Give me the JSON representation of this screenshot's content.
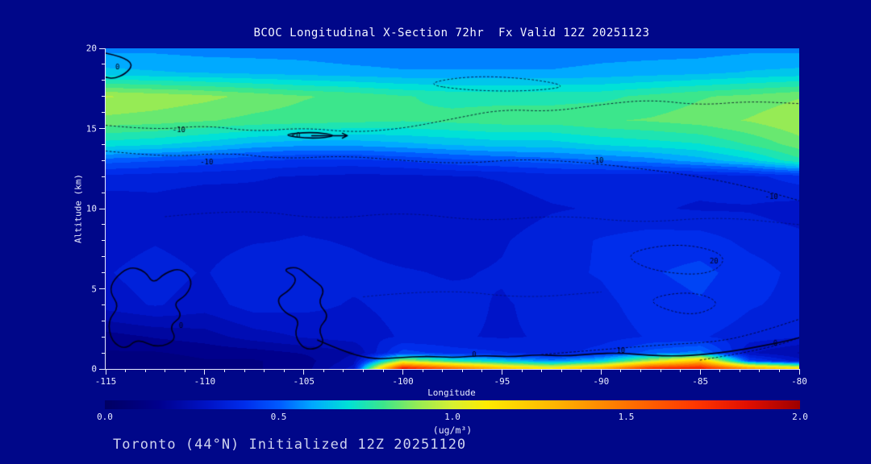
{
  "title": "BCOC Longitudinal X-Section 72hr  Fx Valid 12Z 20251123",
  "footer": "Toronto (44°N) Initialized 12Z 20251120",
  "page_bg": "#000789",
  "chart_data": {
    "type": "heatmap",
    "title": "BCOC Longitudinal X-Section 72hr  Fx Valid 12Z 20251123",
    "xlabel": "Longitude",
    "ylabel": "Altitude (km)",
    "xlim": [
      -115,
      -80
    ],
    "ylim": [
      0,
      20
    ],
    "x_ticks": [
      -115,
      -110,
      -105,
      -100,
      -95,
      -90,
      -85,
      -80
    ],
    "y_ticks": [
      0,
      5,
      10,
      15,
      20
    ],
    "x_minor_step": 1,
    "y_minor_step": 1,
    "grid": "off",
    "value_quantize_step": 0.05,
    "lons": [
      -115,
      -112.5,
      -110,
      -107.5,
      -105,
      -102.5,
      -100,
      -97.5,
      -95,
      -92.5,
      -90,
      -87.5,
      -85,
      -82.5,
      -80
    ],
    "alts": [
      0,
      0.5,
      1,
      2,
      4,
      6,
      8,
      10,
      12,
      13,
      14,
      15.5,
      17,
      18.5,
      20
    ],
    "values": [
      [
        0.1,
        0.1,
        0.12,
        0.12,
        0.15,
        0.3,
        1.9,
        1.6,
        1.3,
        1.15,
        1.35,
        1.8,
        1.85,
        1.45,
        1.2
      ],
      [
        0.1,
        0.1,
        0.12,
        0.12,
        0.15,
        0.25,
        0.95,
        0.75,
        0.65,
        0.55,
        0.65,
        0.95,
        1.25,
        0.45,
        0.3
      ],
      [
        0.12,
        0.12,
        0.14,
        0.15,
        0.18,
        0.22,
        0.45,
        0.4,
        0.38,
        0.35,
        0.4,
        0.5,
        0.55,
        0.28,
        0.22
      ],
      [
        0.15,
        0.18,
        0.2,
        0.25,
        0.28,
        0.3,
        0.33,
        0.33,
        0.32,
        0.33,
        0.35,
        0.38,
        0.38,
        0.35,
        0.33
      ],
      [
        0.3,
        0.33,
        0.3,
        0.35,
        0.34,
        0.32,
        0.34,
        0.34,
        0.32,
        0.34,
        0.36,
        0.4,
        0.42,
        0.38,
        0.36
      ],
      [
        0.32,
        0.35,
        0.32,
        0.37,
        0.35,
        0.34,
        0.33,
        0.32,
        0.33,
        0.36,
        0.38,
        0.42,
        0.44,
        0.4,
        0.36
      ],
      [
        0.3,
        0.32,
        0.3,
        0.32,
        0.33,
        0.32,
        0.3,
        0.3,
        0.32,
        0.35,
        0.38,
        0.4,
        0.4,
        0.36,
        0.34
      ],
      [
        0.28,
        0.3,
        0.28,
        0.3,
        0.3,
        0.28,
        0.28,
        0.28,
        0.3,
        0.32,
        0.33,
        0.33,
        0.32,
        0.32,
        0.3
      ],
      [
        0.36,
        0.35,
        0.34,
        0.33,
        0.32,
        0.31,
        0.31,
        0.32,
        0.33,
        0.35,
        0.35,
        0.34,
        0.34,
        0.36,
        0.4
      ],
      [
        0.5,
        0.48,
        0.46,
        0.43,
        0.41,
        0.41,
        0.43,
        0.46,
        0.48,
        0.5,
        0.52,
        0.55,
        0.6,
        0.66,
        0.76
      ],
      [
        0.7,
        0.68,
        0.65,
        0.61,
        0.59,
        0.59,
        0.61,
        0.63,
        0.65,
        0.65,
        0.68,
        0.7,
        0.72,
        0.78,
        0.85
      ],
      [
        0.86,
        0.85,
        0.83,
        0.81,
        0.8,
        0.79,
        0.78,
        0.79,
        0.8,
        0.8,
        0.82,
        0.83,
        0.85,
        0.88,
        0.92
      ],
      [
        0.93,
        0.91,
        0.89,
        0.86,
        0.83,
        0.81,
        0.78,
        0.76,
        0.76,
        0.76,
        0.76,
        0.79,
        0.82,
        0.84,
        0.87
      ],
      [
        0.64,
        0.63,
        0.62,
        0.61,
        0.6,
        0.59,
        0.58,
        0.58,
        0.58,
        0.58,
        0.59,
        0.6,
        0.61,
        0.63,
        0.64
      ],
      [
        0.56,
        0.56,
        0.55,
        0.55,
        0.55,
        0.54,
        0.54,
        0.54,
        0.54,
        0.54,
        0.55,
        0.55,
        0.55,
        0.56,
        0.56
      ]
    ],
    "colormap": {
      "stops": [
        [
          0.0,
          [
            0,
            0,
            100
          ]
        ],
        [
          0.15,
          [
            0,
            0,
            140
          ]
        ],
        [
          0.3,
          [
            0,
            20,
            200
          ]
        ],
        [
          0.4,
          [
            0,
            45,
            235
          ]
        ],
        [
          0.5,
          [
            0,
            90,
            255
          ]
        ],
        [
          0.6,
          [
            0,
            170,
            255
          ]
        ],
        [
          0.7,
          [
            0,
            225,
            215
          ]
        ],
        [
          0.8,
          [
            60,
            230,
            140
          ]
        ],
        [
          0.9,
          [
            150,
            235,
            85
          ]
        ],
        [
          1.0,
          [
            215,
            240,
            50
          ]
        ],
        [
          1.1,
          [
            255,
            235,
            0
          ]
        ],
        [
          1.3,
          [
            255,
            180,
            0
          ]
        ],
        [
          1.5,
          [
            255,
            115,
            0
          ]
        ],
        [
          1.7,
          [
            255,
            55,
            0
          ]
        ],
        [
          1.85,
          [
            225,
            15,
            0
          ]
        ],
        [
          2.0,
          [
            158,
            0,
            0
          ]
        ]
      ]
    },
    "colorbar": {
      "min": 0,
      "max": 2,
      "ticks": [
        "0.0",
        "0.5",
        "1.0",
        "1.5",
        "2.0"
      ],
      "units": "(ug/m³)"
    },
    "overlay_contours": [
      {
        "name": "zero-topleft",
        "style": "solid",
        "closed": false,
        "points": [
          [
            -115,
            19.7
          ],
          [
            -114.2,
            19.5
          ],
          [
            -113.6,
            19.0
          ],
          [
            -114.0,
            18.4
          ],
          [
            -114.6,
            18.1
          ],
          [
            -115,
            18.2
          ]
        ]
      },
      {
        "name": "zero-blob-left",
        "style": "solid",
        "closed": true,
        "points": [
          [
            -114.6,
            5.6
          ],
          [
            -113.8,
            6.4
          ],
          [
            -113.0,
            6.1
          ],
          [
            -112.6,
            5.3
          ],
          [
            -112.0,
            6.0
          ],
          [
            -111.2,
            6.3
          ],
          [
            -110.6,
            5.5
          ],
          [
            -110.9,
            4.6
          ],
          [
            -111.6,
            4.1
          ],
          [
            -111.1,
            3.3
          ],
          [
            -111.8,
            2.7
          ],
          [
            -111.4,
            1.8
          ],
          [
            -112.4,
            1.3
          ],
          [
            -113.4,
            1.9
          ],
          [
            -114.0,
            1.2
          ],
          [
            -114.7,
            1.7
          ],
          [
            -114.9,
            3.0
          ],
          [
            -114.3,
            3.9
          ],
          [
            -114.8,
            4.8
          ]
        ]
      },
      {
        "name": "zero-blob-mid",
        "style": "solid",
        "closed": true,
        "points": [
          [
            -106.1,
            6.2
          ],
          [
            -105.3,
            5.7
          ],
          [
            -105.7,
            4.9
          ],
          [
            -106.4,
            4.4
          ],
          [
            -106.0,
            3.5
          ],
          [
            -105.2,
            3.1
          ],
          [
            -105.5,
            2.1
          ],
          [
            -104.9,
            1.1
          ],
          [
            -103.9,
            1.5
          ],
          [
            -104.3,
            2.5
          ],
          [
            -103.7,
            3.3
          ],
          [
            -104.3,
            4.1
          ],
          [
            -103.9,
            5.0
          ],
          [
            -104.7,
            5.7
          ],
          [
            -105.3,
            6.4
          ]
        ]
      },
      {
        "name": "zero-plume-top",
        "style": "solid",
        "closed": false,
        "points": [
          [
            -104.3,
            1.8
          ],
          [
            -103.0,
            1.1
          ],
          [
            -101.6,
            0.6
          ],
          [
            -100.2,
            0.7
          ],
          [
            -98.8,
            0.8
          ],
          [
            -97.4,
            0.7
          ],
          [
            -96.0,
            0.85
          ],
          [
            -94.6,
            0.75
          ],
          [
            -93.2,
            0.9
          ],
          [
            -91.8,
            0.8
          ],
          [
            -90.4,
            0.95
          ],
          [
            -89.0,
            1.0
          ],
          [
            -87.6,
            0.85
          ],
          [
            -86.2,
            0.8
          ],
          [
            -84.8,
            0.9
          ],
          [
            -83.4,
            1.1
          ],
          [
            -82.0,
            1.4
          ],
          [
            -80.8,
            1.7
          ],
          [
            -80,
            1.95
          ]
        ]
      },
      {
        "name": "lt0-loop",
        "style": "solid",
        "closed": true,
        "points": [
          [
            -106.2,
            14.6
          ],
          [
            -104.6,
            14.8
          ],
          [
            -103.2,
            14.55
          ],
          [
            -104.6,
            14.35
          ]
        ]
      },
      {
        "name": "arrow-indicator",
        "style": "arrow",
        "closed": false,
        "points": [
          [
            -104.6,
            14.55
          ],
          [
            -102.8,
            14.55
          ]
        ]
      },
      {
        "name": "dotted-upper",
        "style": "dotted",
        "closed": false,
        "points": [
          [
            -115,
            15.2
          ],
          [
            -112.5,
            14.9
          ],
          [
            -110,
            15.2
          ],
          [
            -107.5,
            14.8
          ],
          [
            -105,
            15.05
          ],
          [
            -102.5,
            14.75
          ],
          [
            -100,
            15.0
          ],
          [
            -97.5,
            15.6
          ],
          [
            -95,
            16.2
          ],
          [
            -92.5,
            16.05
          ],
          [
            -90,
            16.5
          ],
          [
            -87.5,
            16.8
          ],
          [
            -85,
            16.45
          ],
          [
            -82.5,
            16.7
          ],
          [
            -80,
            16.55
          ]
        ]
      },
      {
        "name": "dotted-lower",
        "style": "dotted",
        "closed": false,
        "points": [
          [
            -115,
            13.6
          ],
          [
            -112,
            13.2
          ],
          [
            -109,
            13.5
          ],
          [
            -106,
            13.1
          ],
          [
            -103,
            13.3
          ],
          [
            -100,
            13.0
          ],
          [
            -97,
            12.8
          ],
          [
            -94,
            13.1
          ],
          [
            -91,
            12.9
          ],
          [
            -88,
            12.5
          ],
          [
            -85,
            12.0
          ],
          [
            -82,
            11.2
          ],
          [
            -80,
            10.5
          ]
        ]
      },
      {
        "name": "dotted-loop-high",
        "style": "dotted",
        "closed": true,
        "points": [
          [
            -99,
            17.8
          ],
          [
            -96.5,
            18.3
          ],
          [
            -93.5,
            18.1
          ],
          [
            -91.5,
            17.6
          ],
          [
            -94,
            17.3
          ],
          [
            -97,
            17.4
          ]
        ]
      },
      {
        "name": "dotted-mid",
        "style": "dotted",
        "faint": true,
        "closed": false,
        "points": [
          [
            -112,
            9.5
          ],
          [
            -108,
            10.0
          ],
          [
            -104,
            9.3
          ],
          [
            -100,
            9.8
          ],
          [
            -96,
            9.2
          ],
          [
            -92,
            9.6
          ],
          [
            -88,
            9.1
          ],
          [
            -84,
            9.5
          ],
          [
            -80,
            9.0
          ]
        ]
      },
      {
        "name": "dotted-mid2",
        "style": "dotted",
        "faint": true,
        "closed": false,
        "points": [
          [
            -102,
            4.5
          ],
          [
            -98,
            5.0
          ],
          [
            -94,
            4.4
          ],
          [
            -90,
            4.8
          ]
        ]
      },
      {
        "name": "dotted-oval-20",
        "style": "dotted",
        "closed": true,
        "points": [
          [
            -89,
            7.2
          ],
          [
            -86,
            7.9
          ],
          [
            -83.5,
            7.1
          ],
          [
            -84.5,
            5.8
          ],
          [
            -87.5,
            6.1
          ]
        ]
      },
      {
        "name": "dotted-oval-low",
        "style": "dotted",
        "closed": true,
        "points": [
          [
            -88,
            4.3
          ],
          [
            -85.5,
            4.9
          ],
          [
            -83.8,
            4.1
          ],
          [
            -85.5,
            3.2
          ]
        ]
      },
      {
        "name": "dotted-bottom-10",
        "style": "dotted",
        "closed": false,
        "points": [
          [
            -93,
            0.9
          ],
          [
            -90,
            1.2
          ],
          [
            -87,
            1.5
          ],
          [
            -84,
            1.7
          ],
          [
            -82,
            2.3
          ],
          [
            -80,
            3.1
          ]
        ]
      },
      {
        "name": "dotted-bottom-right",
        "style": "dotted",
        "closed": false,
        "points": [
          [
            -85,
            0.55
          ],
          [
            -83,
            0.95
          ],
          [
            -81,
            1.5
          ],
          [
            -80,
            1.95
          ]
        ]
      }
    ],
    "contour_labels": [
      {
        "text": "0",
        "lon": -114.4,
        "alt": 18.8
      },
      {
        "text": "-10",
        "lon": -111.3,
        "alt": 14.9
      },
      {
        "text": "-10",
        "lon": -109.9,
        "alt": 12.9
      },
      {
        "text": "<0",
        "lon": -105.4,
        "alt": 14.55
      },
      {
        "text": "-10",
        "lon": -90.2,
        "alt": 13.0
      },
      {
        "text": "-10",
        "lon": -81.4,
        "alt": 10.7
      },
      {
        "text": "20",
        "lon": -84.3,
        "alt": 6.7
      },
      {
        "text": "10",
        "lon": -89.0,
        "alt": 1.1
      },
      {
        "text": "0",
        "lon": -96.4,
        "alt": 0.85
      },
      {
        "text": "0",
        "lon": -81.2,
        "alt": 1.55
      },
      {
        "text": "0",
        "lon": -111.2,
        "alt": 2.7
      }
    ]
  }
}
